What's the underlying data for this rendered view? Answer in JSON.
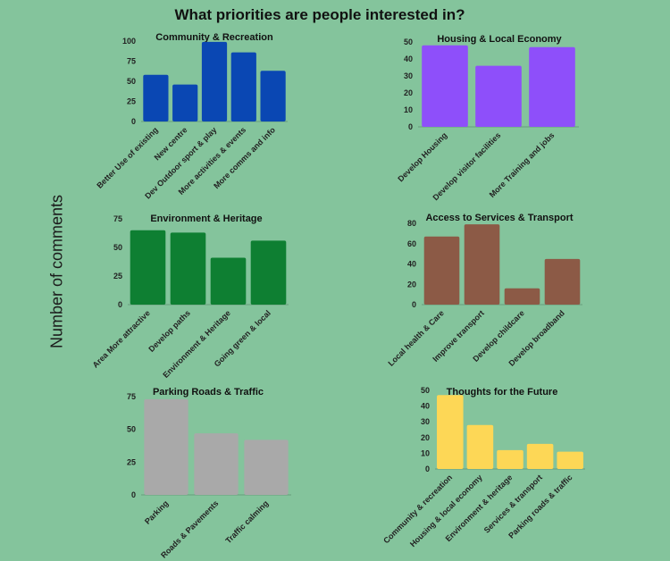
{
  "title": "What priorities are people interested in?",
  "ylabel": "Number of comments",
  "chart_data": [
    {
      "type": "bar",
      "title": "Community & Recreation",
      "color": "#0a47b3",
      "categories": [
        "Better Use of existing",
        "New centre",
        "Dev Outdoor sport & play",
        "More activities & events",
        "More comms and info"
      ],
      "values": [
        58,
        46,
        99,
        86,
        63
      ],
      "ylim": [
        0,
        100
      ],
      "yticks": [
        0,
        25,
        50,
        75,
        100
      ]
    },
    {
      "type": "bar",
      "title": "Housing & Local Economy",
      "color": "#8e4ffa",
      "categories": [
        "Develop Housing",
        "Develop visitor facilities",
        "More Training and jobs"
      ],
      "values": [
        48,
        36,
        47
      ],
      "ylim": [
        0,
        50
      ],
      "yticks": [
        0,
        10,
        20,
        30,
        40,
        50
      ]
    },
    {
      "type": "bar",
      "title": "Environment & Heritage",
      "color": "#0e7f32",
      "categories": [
        "Area More attractive",
        "Develop paths",
        "Environment & Heritage",
        "Going green & local"
      ],
      "values": [
        65,
        63,
        41,
        56
      ],
      "ylim": [
        0,
        75
      ],
      "yticks": [
        0,
        25,
        50,
        75
      ]
    },
    {
      "type": "bar",
      "title": "Access to Services & Transport",
      "color": "#8c5a46",
      "categories": [
        "Local health & Care",
        "Improve transport",
        "Develop childcare",
        "Develop broadband"
      ],
      "values": [
        67,
        79,
        16,
        45
      ],
      "ylim": [
        0,
        80
      ],
      "yticks": [
        0,
        20,
        40,
        60,
        80
      ]
    },
    {
      "type": "bar",
      "title": "Parking Roads & Traffic",
      "color": "#a9a9a9",
      "categories": [
        "Parking",
        "Roads & Pavements",
        "Traffic calming"
      ],
      "values": [
        73,
        47,
        42
      ],
      "ylim": [
        0,
        75
      ],
      "yticks": [
        0,
        25,
        50,
        75
      ]
    },
    {
      "type": "bar",
      "title": "Thoughts for the Future",
      "color": "#fdd756",
      "categories": [
        "Community & recreation",
        "Housing & local economy",
        "Environment & heritage",
        "Services & transport",
        "Parking roads & traffic"
      ],
      "values": [
        47,
        28,
        12,
        16,
        11
      ],
      "ylim": [
        0,
        50
      ],
      "yticks": [
        0,
        10,
        20,
        30,
        40,
        50
      ]
    }
  ]
}
